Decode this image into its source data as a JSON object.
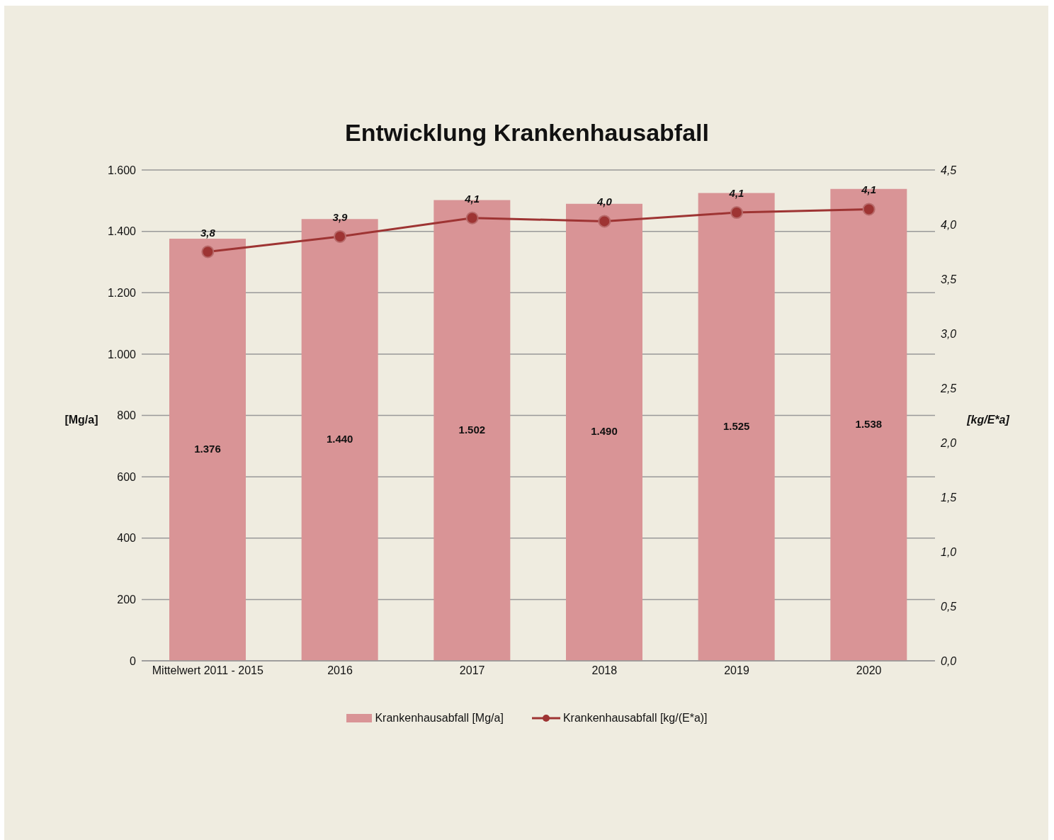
{
  "chart_data": {
    "type": "bar",
    "title": "Entwicklung Krankenhausabfall",
    "ylabel": "[Mg/a]",
    "y2label": "[kg/E*a]",
    "categories": [
      "Mittelwert 2011 - 2015",
      "2016",
      "2017",
      "2018",
      "2019",
      "2020"
    ],
    "series": [
      {
        "name": "Krankenhausabfall [Mg/a]",
        "color": "#d99496",
        "values": [
          1376,
          1440,
          1502,
          1490,
          1525,
          1538
        ],
        "value_labels": [
          "1.376",
          "1.440",
          "1.502",
          "1.490",
          "1.525",
          "1.538"
        ]
      },
      {
        "name": "Krankenhausabfall [kg/(E*a)]",
        "type": "line",
        "axis": "y2",
        "color": "#9e3433",
        "marker": "circle",
        "values": [
          3.75,
          3.89,
          4.06,
          4.03,
          4.11,
          4.14
        ],
        "value_labels": [
          "3,8",
          "3,9",
          "4,1",
          "4,0",
          "4,1",
          "4,1"
        ]
      }
    ],
    "ylim": [
      0,
      1600
    ],
    "yticks": [
      {
        "value": 0,
        "label": "0"
      },
      {
        "value": 200,
        "label": "200"
      },
      {
        "value": 400,
        "label": "400"
      },
      {
        "value": 600,
        "label": "600"
      },
      {
        "value": 800,
        "label": "800"
      },
      {
        "value": 1000,
        "label": "1.000"
      },
      {
        "value": 1200,
        "label": "1.200"
      },
      {
        "value": 1400,
        "label": "1.400"
      },
      {
        "value": 1600,
        "label": "1.600"
      }
    ],
    "y2lim": [
      0,
      4.5
    ],
    "y2ticks": [
      {
        "value": 0,
        "label": "0,0"
      },
      {
        "value": 0.5,
        "label": "0,5"
      },
      {
        "value": 1,
        "label": "1,0"
      },
      {
        "value": 1.5,
        "label": "1,5"
      },
      {
        "value": 2,
        "label": "2,0"
      },
      {
        "value": 2.5,
        "label": "2,5"
      },
      {
        "value": 3,
        "label": "3,0"
      },
      {
        "value": 3.5,
        "label": "3,5"
      },
      {
        "value": 4,
        "label": "4,0"
      },
      {
        "value": 4.5,
        "label": "4,5"
      }
    ],
    "grid": "y",
    "legend": "bottom"
  }
}
